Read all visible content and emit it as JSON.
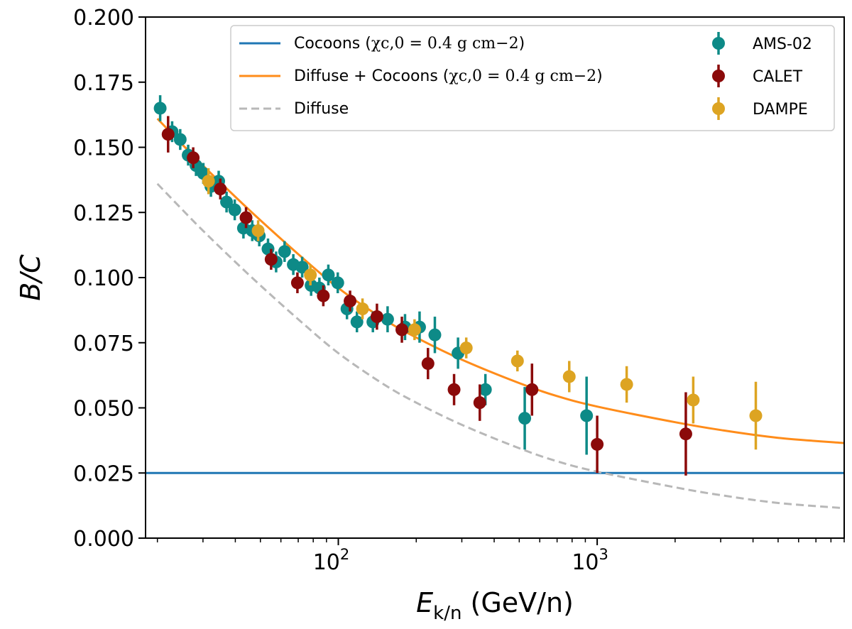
{
  "chart_data": {
    "type": "scatter",
    "title": "",
    "xlabel": "E_k/n (GeV/n)",
    "xlabel_main": "E",
    "xlabel_sub": "k/n",
    "xlabel_unit": " (GeV/n)",
    "ylabel": "B/C",
    "xscale": "log",
    "xlim": [
      18,
      9000
    ],
    "ylim": [
      0.0,
      0.2
    ],
    "yticks": [
      "0.000",
      "0.025",
      "0.050",
      "0.075",
      "0.100",
      "0.125",
      "0.150",
      "0.175",
      "0.200"
    ],
    "xticks": [
      {
        "value": 100,
        "base": "10",
        "exp": "2"
      },
      {
        "value": 1000,
        "base": "10",
        "exp": "3"
      }
    ],
    "legend_position": "top-right",
    "lines": [
      {
        "name": "Cocoons",
        "label_main": "Cocoons (",
        "label_math": "χc,0 = 0.4 g cm−2",
        "label_close": ")",
        "color": "#1f77b4",
        "style": "solid",
        "x": [
          18,
          9000
        ],
        "y": [
          0.025,
          0.025
        ]
      },
      {
        "name": "Diffuse + Cocoons",
        "label_main": "Diffuse + Cocoons (",
        "label_math": "χc,0 = 0.4 g cm−2",
        "label_close": ")",
        "color": "#ff8c1a",
        "style": "solid",
        "x": [
          20,
          25,
          30,
          40,
          50,
          70,
          100,
          150,
          200,
          300,
          500,
          700,
          1000,
          2000,
          3000,
          5000,
          9000
        ],
        "y": [
          0.161,
          0.151,
          0.143,
          0.131,
          0.122,
          0.109,
          0.096,
          0.084,
          0.077,
          0.0685,
          0.0595,
          0.0545,
          0.0505,
          0.0445,
          0.0415,
          0.0385,
          0.0365
        ]
      },
      {
        "name": "Diffuse",
        "label_main": "Diffuse",
        "label_math": "",
        "label_close": "",
        "color": "#b8b8b8",
        "style": "dashed",
        "x": [
          20,
          25,
          30,
          40,
          50,
          70,
          100,
          150,
          200,
          300,
          500,
          700,
          1000,
          2000,
          3000,
          5000,
          9000
        ],
        "y": [
          0.136,
          0.126,
          0.118,
          0.106,
          0.097,
          0.084,
          0.071,
          0.059,
          0.052,
          0.0435,
          0.0345,
          0.0295,
          0.0255,
          0.0195,
          0.0165,
          0.0135,
          0.0115
        ]
      }
    ],
    "series": [
      {
        "name": "AMS-02",
        "color": "#0d8a87",
        "points": [
          {
            "x": 20.5,
            "y": 0.165,
            "err": 0.005
          },
          {
            "x": 22.8,
            "y": 0.156,
            "err": 0.004
          },
          {
            "x": 24.5,
            "y": 0.153,
            "err": 0.004
          },
          {
            "x": 26.3,
            "y": 0.147,
            "err": 0.004
          },
          {
            "x": 28.2,
            "y": 0.143,
            "err": 0.004
          },
          {
            "x": 30.1,
            "y": 0.14,
            "err": 0.004
          },
          {
            "x": 32.2,
            "y": 0.135,
            "err": 0.004
          },
          {
            "x": 34.5,
            "y": 0.137,
            "err": 0.004
          },
          {
            "x": 37.0,
            "y": 0.129,
            "err": 0.004
          },
          {
            "x": 39.8,
            "y": 0.126,
            "err": 0.004
          },
          {
            "x": 43.0,
            "y": 0.119,
            "err": 0.004
          },
          {
            "x": 46.5,
            "y": 0.118,
            "err": 0.004
          },
          {
            "x": 49.5,
            "y": 0.116,
            "err": 0.004
          },
          {
            "x": 53.5,
            "y": 0.111,
            "err": 0.004
          },
          {
            "x": 57.5,
            "y": 0.106,
            "err": 0.004
          },
          {
            "x": 62.0,
            "y": 0.11,
            "err": 0.004
          },
          {
            "x": 67.0,
            "y": 0.105,
            "err": 0.004
          },
          {
            "x": 72.5,
            "y": 0.104,
            "err": 0.004
          },
          {
            "x": 78.5,
            "y": 0.097,
            "err": 0.004
          },
          {
            "x": 84.5,
            "y": 0.096,
            "err": 0.004
          },
          {
            "x": 91.5,
            "y": 0.101,
            "err": 0.004
          },
          {
            "x": 99.5,
            "y": 0.098,
            "err": 0.004
          },
          {
            "x": 108,
            "y": 0.088,
            "err": 0.004
          },
          {
            "x": 118,
            "y": 0.083,
            "err": 0.004
          },
          {
            "x": 136,
            "y": 0.083,
            "err": 0.004
          },
          {
            "x": 155,
            "y": 0.084,
            "err": 0.005
          },
          {
            "x": 181,
            "y": 0.081,
            "err": 0.005
          },
          {
            "x": 206,
            "y": 0.081,
            "err": 0.006
          },
          {
            "x": 236,
            "y": 0.078,
            "err": 0.007
          },
          {
            "x": 290,
            "y": 0.071,
            "err": 0.006
          },
          {
            "x": 370,
            "y": 0.057,
            "err": 0.006
          },
          {
            "x": 525,
            "y": 0.046,
            "err": 0.012
          },
          {
            "x": 910,
            "y": 0.047,
            "err": 0.015
          }
        ]
      },
      {
        "name": "CALET",
        "color": "#8b0a0a",
        "points": [
          {
            "x": 22.0,
            "y": 0.155,
            "err": 0.007
          },
          {
            "x": 27.5,
            "y": 0.146,
            "err": 0.004
          },
          {
            "x": 35.0,
            "y": 0.134,
            "err": 0.004
          },
          {
            "x": 44.0,
            "y": 0.123,
            "err": 0.004
          },
          {
            "x": 55.0,
            "y": 0.107,
            "err": 0.004
          },
          {
            "x": 69.5,
            "y": 0.098,
            "err": 0.004
          },
          {
            "x": 87.5,
            "y": 0.093,
            "err": 0.004
          },
          {
            "x": 111,
            "y": 0.091,
            "err": 0.004
          },
          {
            "x": 141,
            "y": 0.085,
            "err": 0.005
          },
          {
            "x": 176,
            "y": 0.08,
            "err": 0.005
          },
          {
            "x": 222,
            "y": 0.067,
            "err": 0.006
          },
          {
            "x": 280,
            "y": 0.057,
            "err": 0.006
          },
          {
            "x": 352,
            "y": 0.052,
            "err": 0.007
          },
          {
            "x": 560,
            "y": 0.057,
            "err": 0.01
          },
          {
            "x": 1000,
            "y": 0.036,
            "err": 0.011
          },
          {
            "x": 2200,
            "y": 0.04,
            "err": 0.016
          }
        ]
      },
      {
        "name": "DAMPE",
        "color": "#dda422",
        "points": [
          {
            "x": 31.5,
            "y": 0.137,
            "err": 0.005
          },
          {
            "x": 49.0,
            "y": 0.118,
            "err": 0.004
          },
          {
            "x": 78.0,
            "y": 0.101,
            "err": 0.004
          },
          {
            "x": 124,
            "y": 0.088,
            "err": 0.004
          },
          {
            "x": 197,
            "y": 0.08,
            "err": 0.004
          },
          {
            "x": 312,
            "y": 0.073,
            "err": 0.004
          },
          {
            "x": 492,
            "y": 0.068,
            "err": 0.004
          },
          {
            "x": 780,
            "y": 0.062,
            "err": 0.006
          },
          {
            "x": 1300,
            "y": 0.059,
            "err": 0.007
          },
          {
            "x": 2350,
            "y": 0.053,
            "err": 0.009
          },
          {
            "x": 4100,
            "y": 0.047,
            "err": 0.013
          }
        ]
      }
    ]
  }
}
